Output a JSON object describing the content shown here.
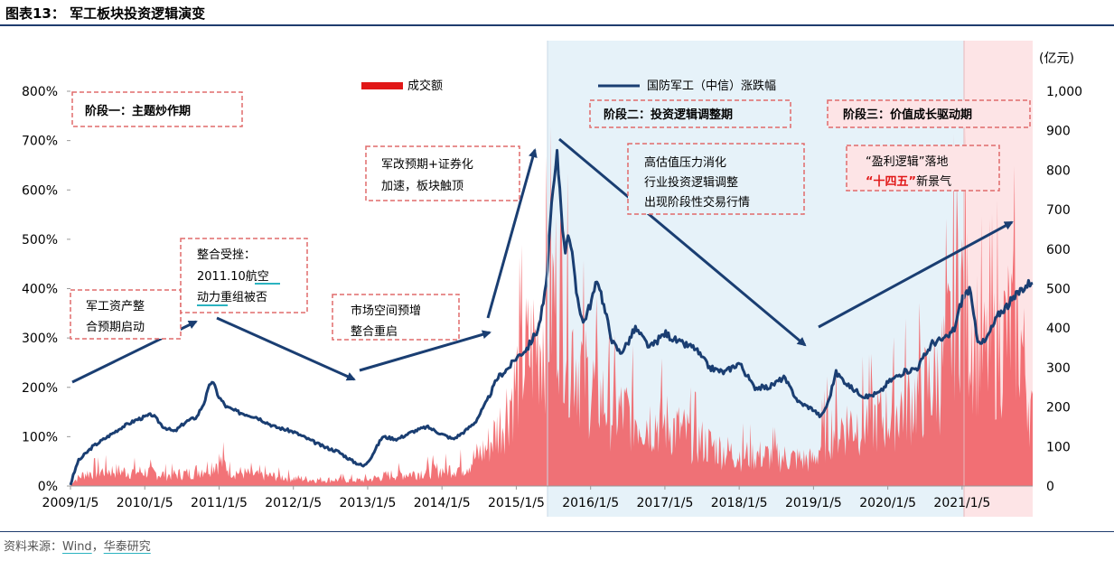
{
  "figure_title": "图表13：   军工板块投资逻辑演变",
  "source": {
    "prefix": "资料来源：",
    "wind": "Wind",
    "sep": "，",
    "org": "华泰研究"
  },
  "chart_data": {
    "type": "area+line",
    "x_tick_labels": [
      "2009/1/5",
      "2010/1/5",
      "2011/1/5",
      "2012/1/5",
      "2013/1/5",
      "2014/1/5",
      "2015/1/5",
      "2016/1/5",
      "2017/1/5",
      "2018/1/5",
      "2019/1/5",
      "2020/1/5",
      "2021/1/5"
    ],
    "x_range": [
      2009.0,
      2021.95
    ],
    "y_left": {
      "ticks": [
        "0%",
        "100%",
        "200%",
        "300%",
        "400%",
        "500%",
        "600%",
        "700%",
        "800%"
      ],
      "range": [
        0,
        800
      ]
    },
    "y_right": {
      "unit": "(亿元)",
      "ticks": [
        "0",
        "100",
        "200",
        "300",
        "400",
        "500",
        "600",
        "700",
        "800",
        "900",
        "1,000"
      ],
      "range": [
        0,
        1000
      ]
    },
    "legend": {
      "volume": "成交额",
      "index": "国防军工（中信）涨跌幅"
    },
    "colors": {
      "volume": "#f05a5f",
      "index": "#1a3e72",
      "phase2_bg": "#e6f2f9",
      "phase3_bg": "#fde4e6",
      "box_border": "#e06b6b",
      "arrow": "#1a3e72"
    },
    "series_index": {
      "name": "国防军工（中信）涨跌幅",
      "x": [
        2009.0,
        2009.1,
        2009.3,
        2009.5,
        2009.7,
        2009.9,
        2010.1,
        2010.25,
        2010.4,
        2010.55,
        2010.7,
        2010.8,
        2010.9,
        2011.0,
        2011.1,
        2011.25,
        2011.5,
        2011.75,
        2012.0,
        2012.2,
        2012.4,
        2012.6,
        2012.8,
        2012.95,
        2013.05,
        2013.2,
        2013.4,
        2013.6,
        2013.8,
        2014.0,
        2014.15,
        2014.3,
        2014.45,
        2014.6,
        2014.75,
        2014.9,
        2015.0,
        2015.15,
        2015.3,
        2015.4,
        2015.45,
        2015.5,
        2015.55,
        2015.6,
        2015.65,
        2015.7,
        2015.75,
        2015.8,
        2015.9,
        2016.0,
        2016.1,
        2016.2,
        2016.3,
        2016.4,
        2016.5,
        2016.6,
        2016.8,
        2017.0,
        2017.2,
        2017.4,
        2017.6,
        2017.8,
        2018.0,
        2018.2,
        2018.4,
        2018.6,
        2018.8,
        2019.0,
        2019.1,
        2019.2,
        2019.3,
        2019.5,
        2019.7,
        2019.9,
        2020.0,
        2020.2,
        2020.4,
        2020.6,
        2020.8,
        2020.9,
        2021.0,
        2021.1,
        2021.2,
        2021.3,
        2021.5,
        2021.7,
        2021.8,
        2021.9,
        2021.95
      ],
      "y": [
        3,
        50,
        80,
        100,
        120,
        135,
        145,
        120,
        110,
        130,
        140,
        170,
        215,
        180,
        160,
        150,
        140,
        120,
        110,
        95,
        80,
        70,
        50,
        40,
        60,
        100,
        95,
        110,
        120,
        105,
        95,
        110,
        130,
        170,
        220,
        240,
        260,
        280,
        320,
        400,
        520,
        600,
        670,
        580,
        470,
        520,
        470,
        400,
        330,
        370,
        420,
        350,
        290,
        270,
        290,
        320,
        280,
        310,
        290,
        280,
        240,
        230,
        250,
        200,
        200,
        220,
        170,
        155,
        140,
        170,
        230,
        200,
        180,
        190,
        210,
        230,
        240,
        290,
        300,
        320,
        380,
        400,
        300,
        290,
        350,
        380,
        400,
        410,
        420
      ]
    },
    "series_volume": {
      "name": "成交额",
      "x": [
        2009.0,
        2009.2,
        2009.5,
        2009.8,
        2010.0,
        2010.3,
        2010.6,
        2010.85,
        2011.0,
        2011.2,
        2011.5,
        2011.8,
        2012.0,
        2012.3,
        2012.6,
        2012.9,
        2013.0,
        2013.3,
        2013.6,
        2013.9,
        2014.0,
        2014.3,
        2014.6,
        2014.8,
        2014.95,
        2015.1,
        2015.25,
        2015.4,
        2015.5,
        2015.6,
        2015.7,
        2015.8,
        2015.9,
        2016.0,
        2016.3,
        2016.6,
        2017.0,
        2017.4,
        2017.8,
        2018.0,
        2018.4,
        2018.8,
        2019.0,
        2019.2,
        2019.5,
        2019.8,
        2020.0,
        2020.2,
        2020.5,
        2020.7,
        2020.85,
        2020.95,
        2021.0,
        2021.1,
        2021.3,
        2021.5,
        2021.7,
        2021.8,
        2021.95
      ],
      "y": [
        10,
        40,
        50,
        45,
        45,
        35,
        40,
        60,
        80,
        45,
        35,
        30,
        25,
        20,
        20,
        18,
        20,
        35,
        40,
        50,
        50,
        60,
        120,
        200,
        300,
        400,
        450,
        520,
        600,
        650,
        480,
        420,
        360,
        320,
        240,
        220,
        200,
        150,
        110,
        100,
        95,
        85,
        80,
        180,
        200,
        210,
        220,
        260,
        300,
        350,
        480,
        700,
        600,
        530,
        400,
        460,
        510,
        450,
        200
      ]
    },
    "annotations": {
      "phase1": "阶段一：主题炒作期",
      "phase2": "阶段二：投资逻辑调整期",
      "phase3": "阶段三：价值成长驱动期",
      "note1": [
        "军工资产整",
        "合预期启动"
      ],
      "note2": [
        "整合受挫：",
        "2011.10航空",
        "动力重组被否"
      ],
      "note3": [
        "市场空间预增",
        "整合重启"
      ],
      "note4": [
        "军改预期+证券化",
        "加速，板块触顶"
      ],
      "note5": [
        "高估值压力消化",
        "行业投资逻辑调整",
        "出现阶段性交易行情"
      ],
      "note6_line1": "“盈利逻辑”落地",
      "note6_red": "“十四五”",
      "note6_rest": "新景气"
    }
  }
}
